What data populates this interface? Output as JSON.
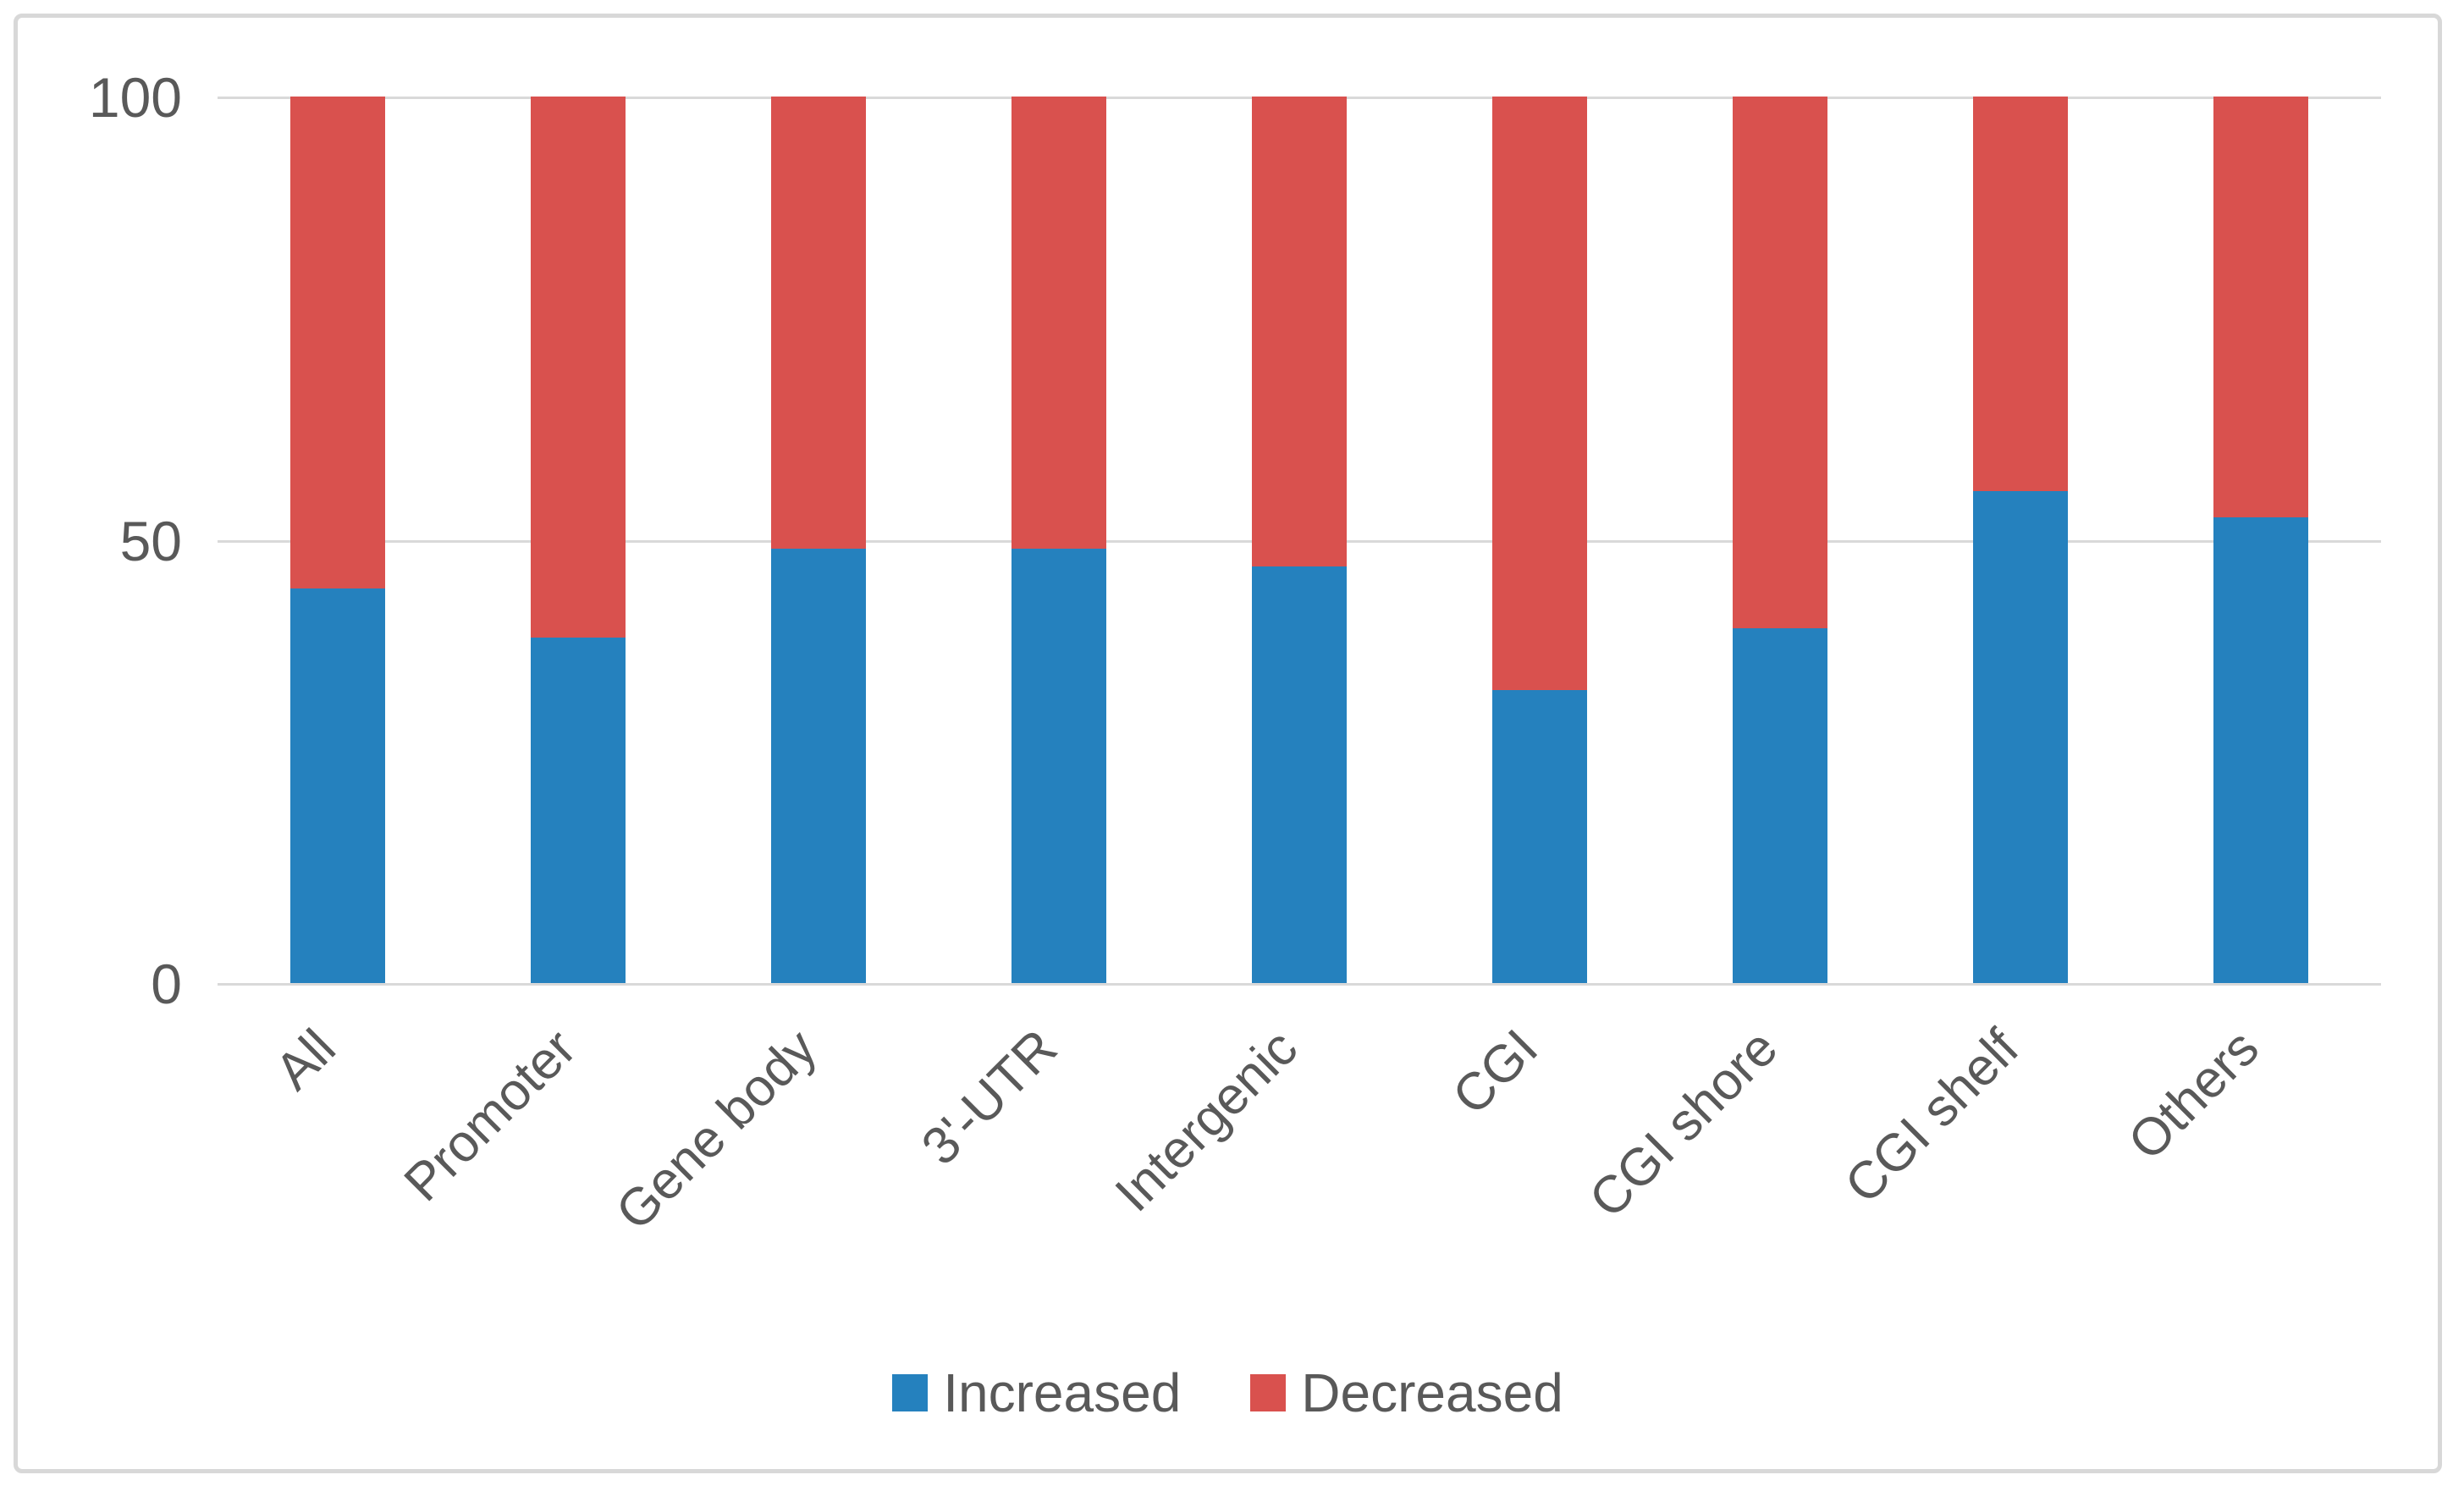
{
  "figure": {
    "background": "#ffffff",
    "border_color": "#d8d8d8"
  },
  "chart_data": {
    "type": "bar",
    "stacked": true,
    "stack_total": 100,
    "title": "",
    "xlabel": "",
    "ylabel": "",
    "categories": [
      "All",
      "Promoter",
      "Gene body",
      "3'-UTR",
      "Intergenic",
      "CGI",
      "CGI shore",
      "CGI shelf",
      "Others"
    ],
    "series": [
      {
        "name": "Increased",
        "color": "#2581BE",
        "values": [
          44.5,
          39,
          49,
          49,
          47,
          33,
          40,
          55.5,
          52.5
        ]
      },
      {
        "name": "Decreased",
        "color": "#D9514E",
        "values": [
          55.5,
          61,
          51,
          51,
          53,
          67,
          60,
          44.5,
          47.5
        ]
      }
    ],
    "ylim": [
      0,
      100
    ],
    "yticks": [
      0,
      50,
      100
    ],
    "grid": true,
    "gridline_color": "#d9d9d9",
    "axis_text_color": "#595959",
    "legend": {
      "position": "bottom",
      "entries": [
        "Increased",
        "Decreased"
      ]
    }
  }
}
